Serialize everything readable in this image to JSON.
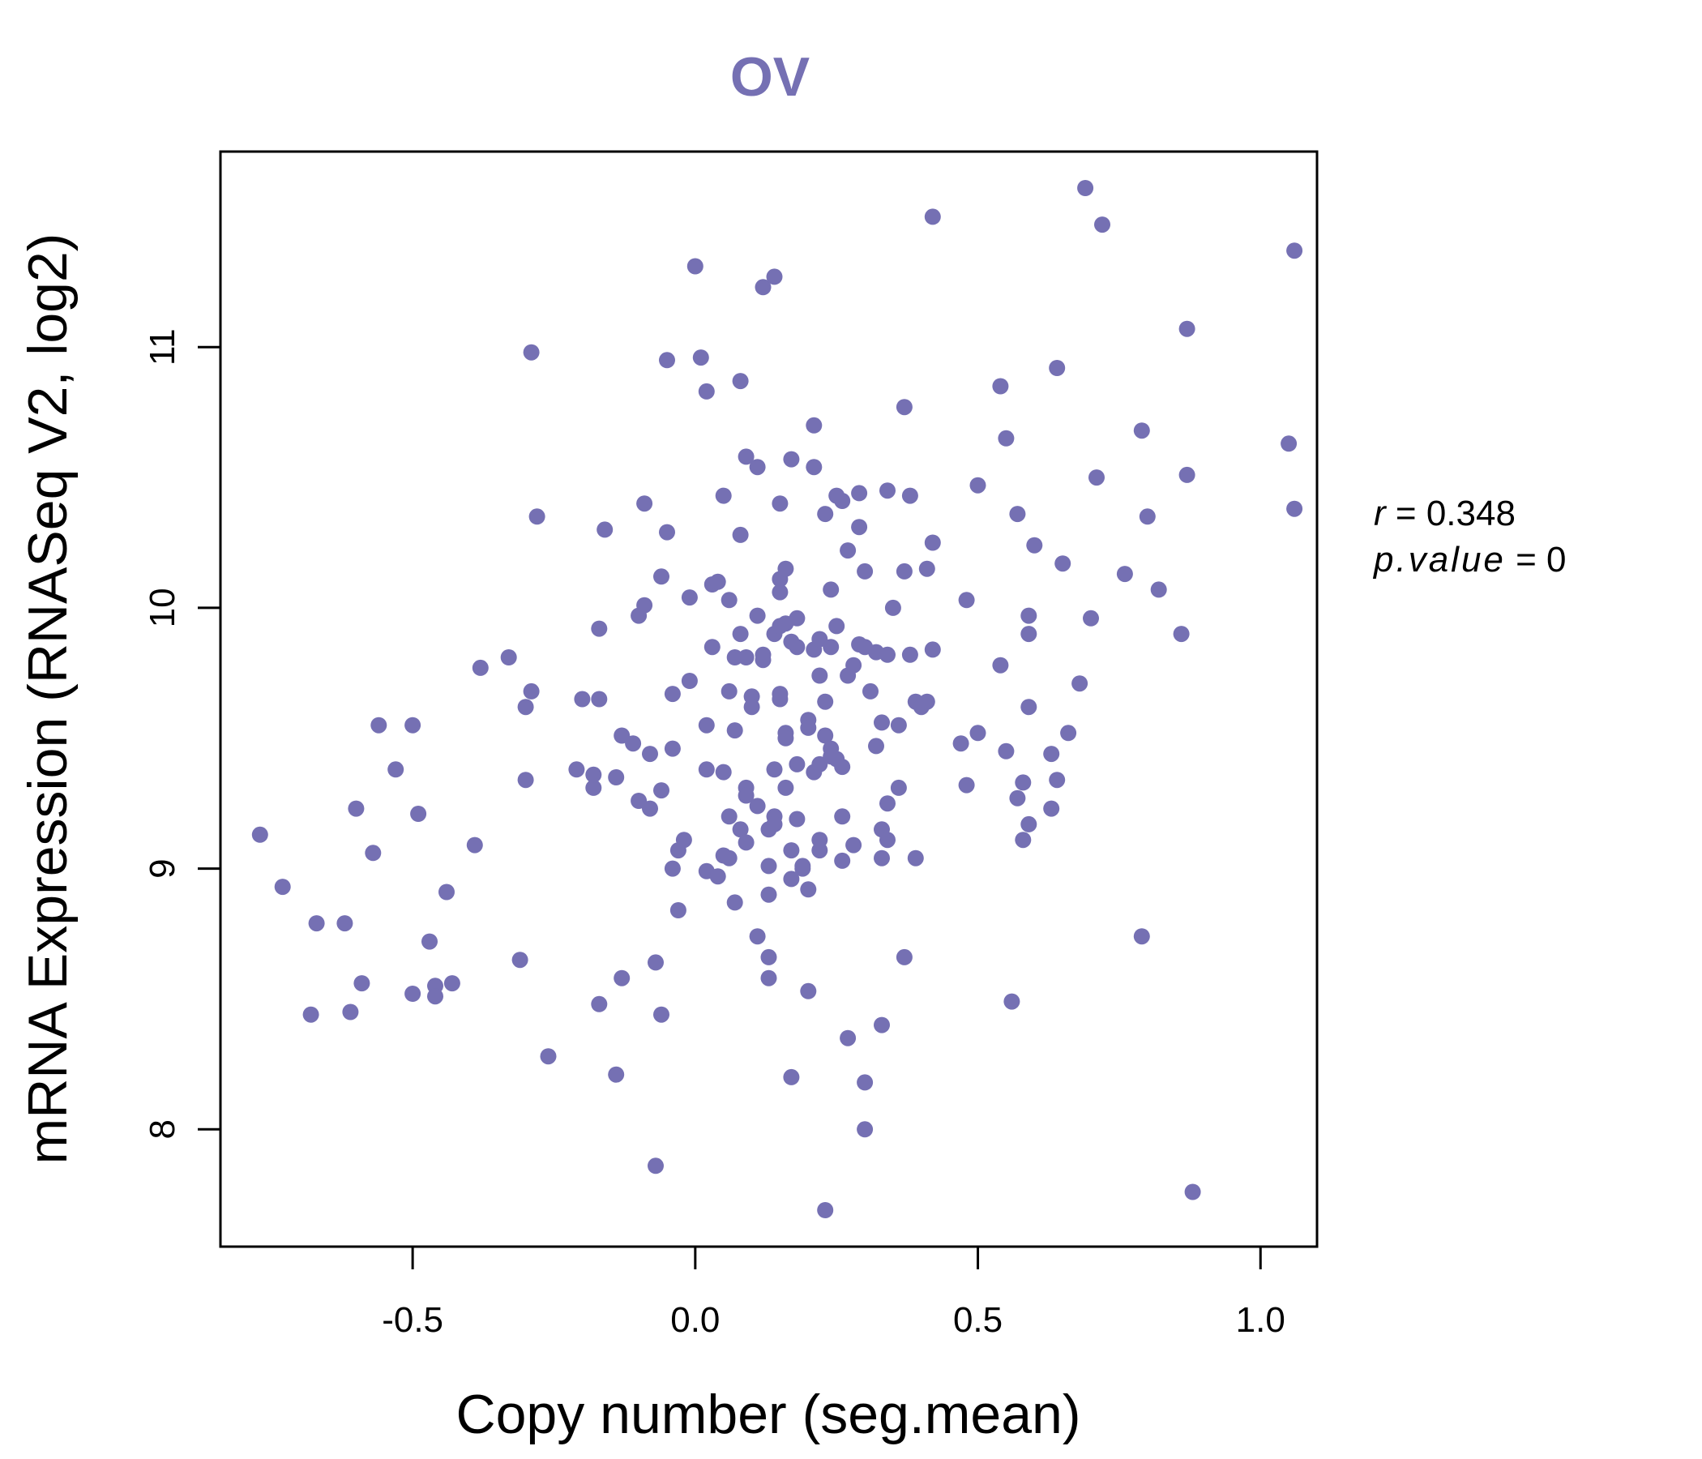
{
  "chart_data": {
    "type": "scatter",
    "title": "OV",
    "xlabel": "Copy number (seg.mean)",
    "ylabel": "mRNA Expression (RNASeq V2, log2)",
    "xlim": [
      -0.84,
      1.1
    ],
    "ylim": [
      7.55,
      11.75
    ],
    "x_ticks": [
      -0.5,
      0.0,
      0.5,
      1.0
    ],
    "x_tick_labels": [
      "-0.5",
      "0.0",
      "0.5",
      "1.0"
    ],
    "y_ticks": [
      8,
      9,
      10,
      11
    ],
    "y_tick_labels": [
      "8",
      "9",
      "10",
      "11"
    ],
    "point_color": "#7570B3",
    "stats": {
      "r_symbol": "r",
      "r_value": "0.348",
      "p_symbol": "p.value",
      "p_value": "0"
    },
    "points": [
      [
        -0.77,
        9.13
      ],
      [
        -0.73,
        8.93
      ],
      [
        -0.68,
        8.44
      ],
      [
        -0.67,
        8.79
      ],
      [
        -0.61,
        8.45
      ],
      [
        -0.62,
        8.79
      ],
      [
        -0.59,
        8.56
      ],
      [
        -0.57,
        9.06
      ],
      [
        -0.6,
        9.23
      ],
      [
        -0.56,
        9.55
      ],
      [
        -0.53,
        9.38
      ],
      [
        -0.5,
        9.55
      ],
      [
        -0.49,
        9.21
      ],
      [
        -0.5,
        8.52
      ],
      [
        -0.47,
        8.72
      ],
      [
        -0.46,
        8.55
      ],
      [
        -0.46,
        8.51
      ],
      [
        -0.44,
        8.91
      ],
      [
        -0.43,
        8.56
      ],
      [
        -0.39,
        9.09
      ],
      [
        -0.38,
        9.77
      ],
      [
        -0.33,
        9.81
      ],
      [
        -0.31,
        8.65
      ],
      [
        -0.3,
        9.34
      ],
      [
        -0.3,
        9.62
      ],
      [
        -0.29,
        9.68
      ],
      [
        -0.28,
        10.35
      ],
      [
        -0.29,
        10.98
      ],
      [
        -0.26,
        8.28
      ],
      [
        -0.21,
        9.38
      ],
      [
        -0.2,
        9.65
      ],
      [
        -0.18,
        9.31
      ],
      [
        -0.18,
        9.36
      ],
      [
        -0.17,
        9.65
      ],
      [
        -0.17,
        8.48
      ],
      [
        -0.17,
        9.92
      ],
      [
        -0.16,
        10.3
      ],
      [
        -0.14,
        9.35
      ],
      [
        -0.14,
        8.21
      ],
      [
        -0.13,
        9.51
      ],
      [
        -0.13,
        8.58
      ],
      [
        -0.11,
        9.48
      ],
      [
        -0.1,
        9.26
      ],
      [
        -0.1,
        9.97
      ],
      [
        -0.09,
        10.01
      ],
      [
        -0.09,
        10.4
      ],
      [
        -0.08,
        9.44
      ],
      [
        -0.08,
        9.23
      ],
      [
        -0.07,
        8.64
      ],
      [
        -0.06,
        9.3
      ],
      [
        -0.06,
        8.44
      ],
      [
        -0.06,
        10.12
      ],
      [
        -0.05,
        10.29
      ],
      [
        -0.05,
        10.95
      ],
      [
        -0.04,
        9.67
      ],
      [
        -0.04,
        9.46
      ],
      [
        -0.04,
        9.0
      ],
      [
        -0.03,
        8.84
      ],
      [
        -0.03,
        9.07
      ],
      [
        -0.02,
        9.11
      ],
      [
        -0.01,
        9.72
      ],
      [
        -0.01,
        10.04
      ],
      [
        -0.07,
        7.86
      ],
      [
        0.0,
        11.31
      ],
      [
        0.01,
        10.96
      ],
      [
        0.02,
        10.83
      ],
      [
        0.02,
        9.38
      ],
      [
        0.02,
        9.55
      ],
      [
        0.02,
        8.99
      ],
      [
        0.03,
        10.09
      ],
      [
        0.03,
        9.85
      ],
      [
        0.04,
        10.1
      ],
      [
        0.04,
        8.97
      ],
      [
        0.05,
        9.05
      ],
      [
        0.05,
        9.37
      ],
      [
        0.05,
        10.43
      ],
      [
        0.06,
        10.03
      ],
      [
        0.06,
        9.2
      ],
      [
        0.06,
        9.68
      ],
      [
        0.06,
        9.04
      ],
      [
        0.07,
        9.53
      ],
      [
        0.07,
        9.81
      ],
      [
        0.07,
        8.87
      ],
      [
        0.08,
        9.9
      ],
      [
        0.08,
        9.15
      ],
      [
        0.08,
        10.28
      ],
      [
        0.08,
        10.87
      ],
      [
        0.09,
        10.58
      ],
      [
        0.09,
        9.31
      ],
      [
        0.09,
        9.28
      ],
      [
        0.09,
        9.1
      ],
      [
        0.09,
        9.81
      ],
      [
        0.1,
        9.66
      ],
      [
        0.1,
        9.62
      ],
      [
        0.11,
        9.24
      ],
      [
        0.11,
        9.97
      ],
      [
        0.11,
        10.54
      ],
      [
        0.11,
        8.74
      ],
      [
        0.12,
        9.8
      ],
      [
        0.12,
        11.23
      ],
      [
        0.12,
        9.82
      ],
      [
        0.13,
        9.15
      ],
      [
        0.13,
        8.9
      ],
      [
        0.13,
        8.66
      ],
      [
        0.13,
        8.58
      ],
      [
        0.13,
        9.01
      ],
      [
        0.14,
        11.27
      ],
      [
        0.14,
        9.9
      ],
      [
        0.14,
        9.38
      ],
      [
        0.14,
        9.2
      ],
      [
        0.14,
        9.17
      ],
      [
        0.15,
        10.11
      ],
      [
        0.15,
        9.93
      ],
      [
        0.15,
        9.65
      ],
      [
        0.15,
        9.67
      ],
      [
        0.15,
        10.4
      ],
      [
        0.15,
        10.06
      ],
      [
        0.16,
        9.31
      ],
      [
        0.16,
        9.52
      ],
      [
        0.16,
        9.5
      ],
      [
        0.16,
        10.15
      ],
      [
        0.16,
        9.94
      ],
      [
        0.17,
        9.07
      ],
      [
        0.17,
        8.96
      ],
      [
        0.17,
        9.87
      ],
      [
        0.17,
        10.57
      ],
      [
        0.17,
        8.2
      ],
      [
        0.18,
        9.85
      ],
      [
        0.18,
        9.96
      ],
      [
        0.18,
        9.4
      ],
      [
        0.18,
        9.19
      ],
      [
        0.19,
        9.0
      ],
      [
        0.19,
        9.01
      ],
      [
        0.2,
        9.57
      ],
      [
        0.2,
        9.54
      ],
      [
        0.2,
        8.53
      ],
      [
        0.2,
        8.92
      ],
      [
        0.21,
        10.7
      ],
      [
        0.21,
        10.54
      ],
      [
        0.21,
        9.84
      ],
      [
        0.21,
        9.37
      ],
      [
        0.22,
        9.88
      ],
      [
        0.22,
        9.74
      ],
      [
        0.22,
        9.4
      ],
      [
        0.22,
        9.07
      ],
      [
        0.22,
        9.11
      ],
      [
        0.23,
        10.36
      ],
      [
        0.23,
        9.64
      ],
      [
        0.23,
        9.51
      ],
      [
        0.23,
        7.69
      ],
      [
        0.24,
        10.07
      ],
      [
        0.24,
        9.85
      ],
      [
        0.24,
        9.46
      ],
      [
        0.24,
        9.43
      ],
      [
        0.25,
        10.43
      ],
      [
        0.25,
        9.93
      ],
      [
        0.25,
        9.42
      ],
      [
        0.26,
        9.2
      ],
      [
        0.26,
        9.03
      ],
      [
        0.26,
        10.41
      ],
      [
        0.26,
        9.39
      ],
      [
        0.27,
        10.22
      ],
      [
        0.27,
        9.74
      ],
      [
        0.27,
        8.35
      ],
      [
        0.28,
        9.09
      ],
      [
        0.28,
        9.78
      ],
      [
        0.29,
        10.31
      ],
      [
        0.29,
        10.44
      ],
      [
        0.29,
        9.86
      ],
      [
        0.3,
        10.14
      ],
      [
        0.3,
        9.85
      ],
      [
        0.3,
        8.0
      ],
      [
        0.3,
        8.18
      ],
      [
        0.31,
        9.68
      ],
      [
        0.32,
        9.83
      ],
      [
        0.32,
        9.47
      ],
      [
        0.33,
        9.56
      ],
      [
        0.33,
        9.15
      ],
      [
        0.33,
        9.04
      ],
      [
        0.33,
        8.4
      ],
      [
        0.34,
        10.45
      ],
      [
        0.34,
        9.82
      ],
      [
        0.34,
        9.25
      ],
      [
        0.34,
        9.11
      ],
      [
        0.35,
        10.0
      ],
      [
        0.36,
        9.55
      ],
      [
        0.36,
        9.31
      ],
      [
        0.37,
        10.14
      ],
      [
        0.37,
        10.77
      ],
      [
        0.37,
        8.66
      ],
      [
        0.38,
        10.43
      ],
      [
        0.38,
        9.82
      ],
      [
        0.39,
        9.04
      ],
      [
        0.39,
        9.64
      ],
      [
        0.4,
        9.62
      ],
      [
        0.41,
        9.64
      ],
      [
        0.41,
        10.15
      ],
      [
        0.42,
        10.25
      ],
      [
        0.42,
        9.84
      ],
      [
        0.42,
        11.5
      ],
      [
        0.47,
        9.48
      ],
      [
        0.48,
        9.32
      ],
      [
        0.48,
        10.03
      ],
      [
        0.5,
        9.52
      ],
      [
        0.5,
        10.47
      ],
      [
        0.54,
        10.85
      ],
      [
        0.54,
        9.78
      ],
      [
        0.55,
        10.65
      ],
      [
        0.55,
        9.45
      ],
      [
        0.56,
        8.49
      ],
      [
        0.57,
        10.36
      ],
      [
        0.57,
        9.27
      ],
      [
        0.58,
        9.11
      ],
      [
        0.58,
        9.33
      ],
      [
        0.59,
        9.97
      ],
      [
        0.59,
        9.9
      ],
      [
        0.59,
        9.17
      ],
      [
        0.59,
        9.62
      ],
      [
        0.6,
        10.24
      ],
      [
        0.63,
        9.44
      ],
      [
        0.63,
        9.23
      ],
      [
        0.64,
        10.92
      ],
      [
        0.64,
        9.34
      ],
      [
        0.65,
        10.17
      ],
      [
        0.66,
        9.52
      ],
      [
        0.68,
        9.71
      ],
      [
        0.69,
        11.61
      ],
      [
        0.7,
        9.96
      ],
      [
        0.71,
        10.5
      ],
      [
        0.72,
        11.47
      ],
      [
        0.76,
        10.13
      ],
      [
        0.79,
        8.74
      ],
      [
        0.79,
        10.68
      ],
      [
        0.8,
        10.35
      ],
      [
        0.82,
        10.07
      ],
      [
        0.86,
        9.9
      ],
      [
        0.87,
        11.07
      ],
      [
        0.87,
        10.51
      ],
      [
        0.88,
        7.76
      ],
      [
        1.05,
        10.63
      ],
      [
        1.06,
        10.38
      ],
      [
        1.06,
        11.37
      ]
    ]
  }
}
